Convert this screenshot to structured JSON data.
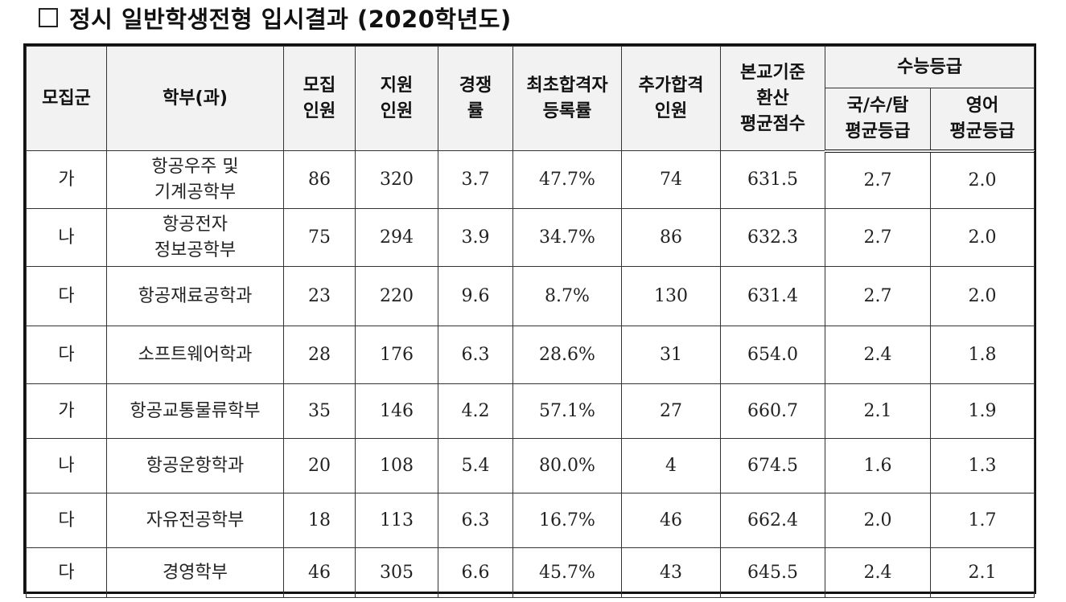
{
  "title": "정시 일반학생전형 입시결과 (2020학년도)",
  "headers": {
    "group": "모집군",
    "dept": "학부(과)",
    "quota": [
      "모집",
      "인원"
    ],
    "applicants": [
      "지원",
      "인원"
    ],
    "ratio": [
      "경쟁",
      "률"
    ],
    "reg_rate": [
      "최초합격자",
      "등록률"
    ],
    "additional": [
      "추가합격",
      "인원"
    ],
    "score": [
      "본교기준",
      "환산",
      "평균점수"
    ],
    "csat": "수능등급",
    "csat_sub1": [
      "국/수/탐",
      "평균등급"
    ],
    "csat_sub2": [
      "영어",
      "평균등급"
    ]
  },
  "rows": [
    {
      "group": "가",
      "dept": [
        "항공우주 및",
        "기계공학부"
      ],
      "quota": "86",
      "applicants": "320",
      "ratio": "3.7",
      "reg_rate": "47.7%",
      "additional": "74",
      "score": "631.5",
      "kms": "2.7",
      "eng": "2.0"
    },
    {
      "group": "나",
      "dept": [
        "항공전자",
        "정보공학부"
      ],
      "quota": "75",
      "applicants": "294",
      "ratio": "3.9",
      "reg_rate": "34.7%",
      "additional": "86",
      "score": "632.3",
      "kms": "2.7",
      "eng": "2.0"
    },
    {
      "group": "다",
      "dept": [
        "항공재료공학과"
      ],
      "quota": "23",
      "applicants": "220",
      "ratio": "9.6",
      "reg_rate": "8.7%",
      "additional": "130",
      "score": "631.4",
      "kms": "2.7",
      "eng": "2.0"
    },
    {
      "group": "다",
      "dept": [
        "소프트웨어학과"
      ],
      "quota": "28",
      "applicants": "176",
      "ratio": "6.3",
      "reg_rate": "28.6%",
      "additional": "31",
      "score": "654.0",
      "kms": "2.4",
      "eng": "1.8"
    },
    {
      "group": "가",
      "dept": [
        "항공교통물류학부"
      ],
      "quota": "35",
      "applicants": "146",
      "ratio": "4.2",
      "reg_rate": "57.1%",
      "additional": "27",
      "score": "660.7",
      "kms": "2.1",
      "eng": "1.9"
    },
    {
      "group": "나",
      "dept": [
        "항공운항학과"
      ],
      "quota": "20",
      "applicants": "108",
      "ratio": "5.4",
      "reg_rate": "80.0%",
      "additional": "4",
      "score": "674.5",
      "kms": "1.6",
      "eng": "1.3"
    },
    {
      "group": "다",
      "dept": [
        "자유전공학부"
      ],
      "quota": "18",
      "applicants": "113",
      "ratio": "6.3",
      "reg_rate": "16.7%",
      "additional": "46",
      "score": "662.4",
      "kms": "2.0",
      "eng": "1.7"
    },
    {
      "group": "다",
      "dept": [
        "경영학부"
      ],
      "quota": "46",
      "applicants": "305",
      "ratio": "6.6",
      "reg_rate": "45.7%",
      "additional": "43",
      "score": "645.5",
      "kms": "2.4",
      "eng": "2.1"
    }
  ]
}
